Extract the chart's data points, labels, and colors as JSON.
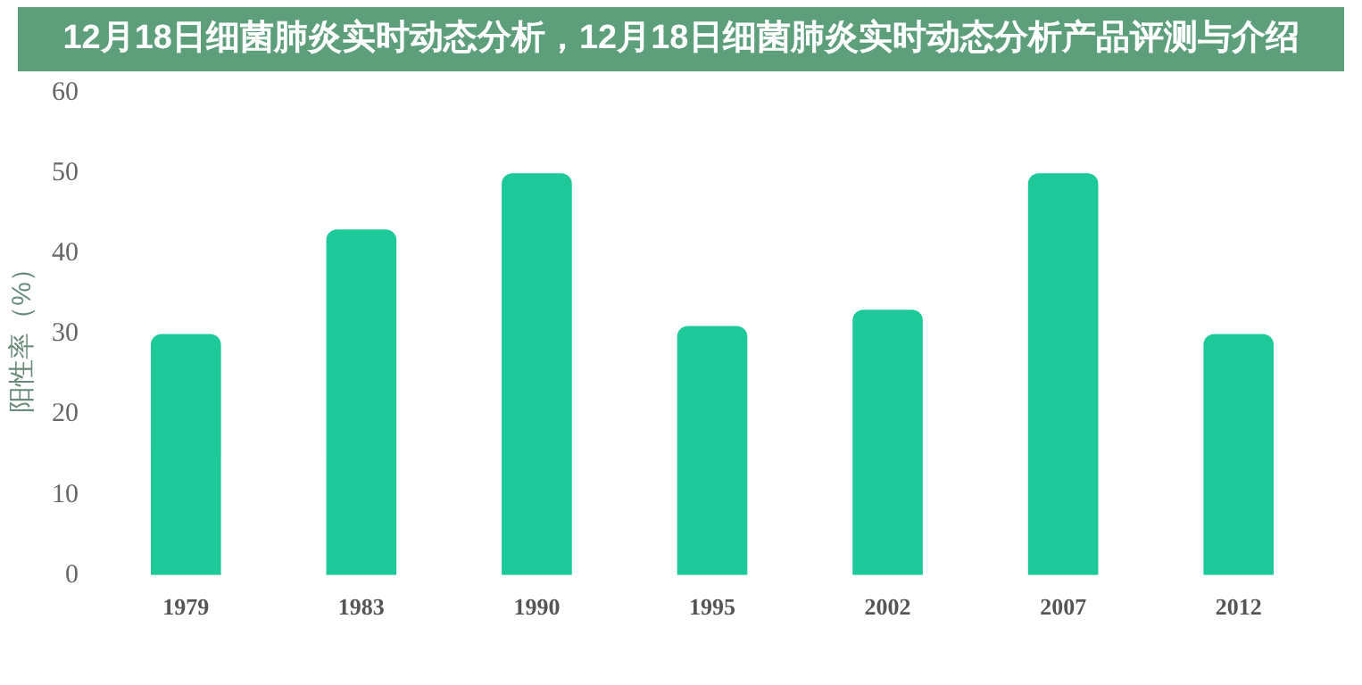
{
  "chart_data": {
    "type": "bar",
    "title": "12月18日细菌肺炎实时动态分析，12月18日细菌肺炎实时动态分析产品评测与介绍",
    "ylabel": "阳性率（%）",
    "categories": [
      "1979",
      "1983",
      "1990",
      "1995",
      "2002",
      "2007",
      "2012"
    ],
    "values": [
      30,
      43,
      50,
      31,
      33,
      50,
      30
    ],
    "color": "#1dc999",
    "ylim": [
      0,
      60
    ],
    "yticks": [
      0,
      10,
      20,
      30,
      40,
      50,
      60
    ],
    "grid": false
  }
}
